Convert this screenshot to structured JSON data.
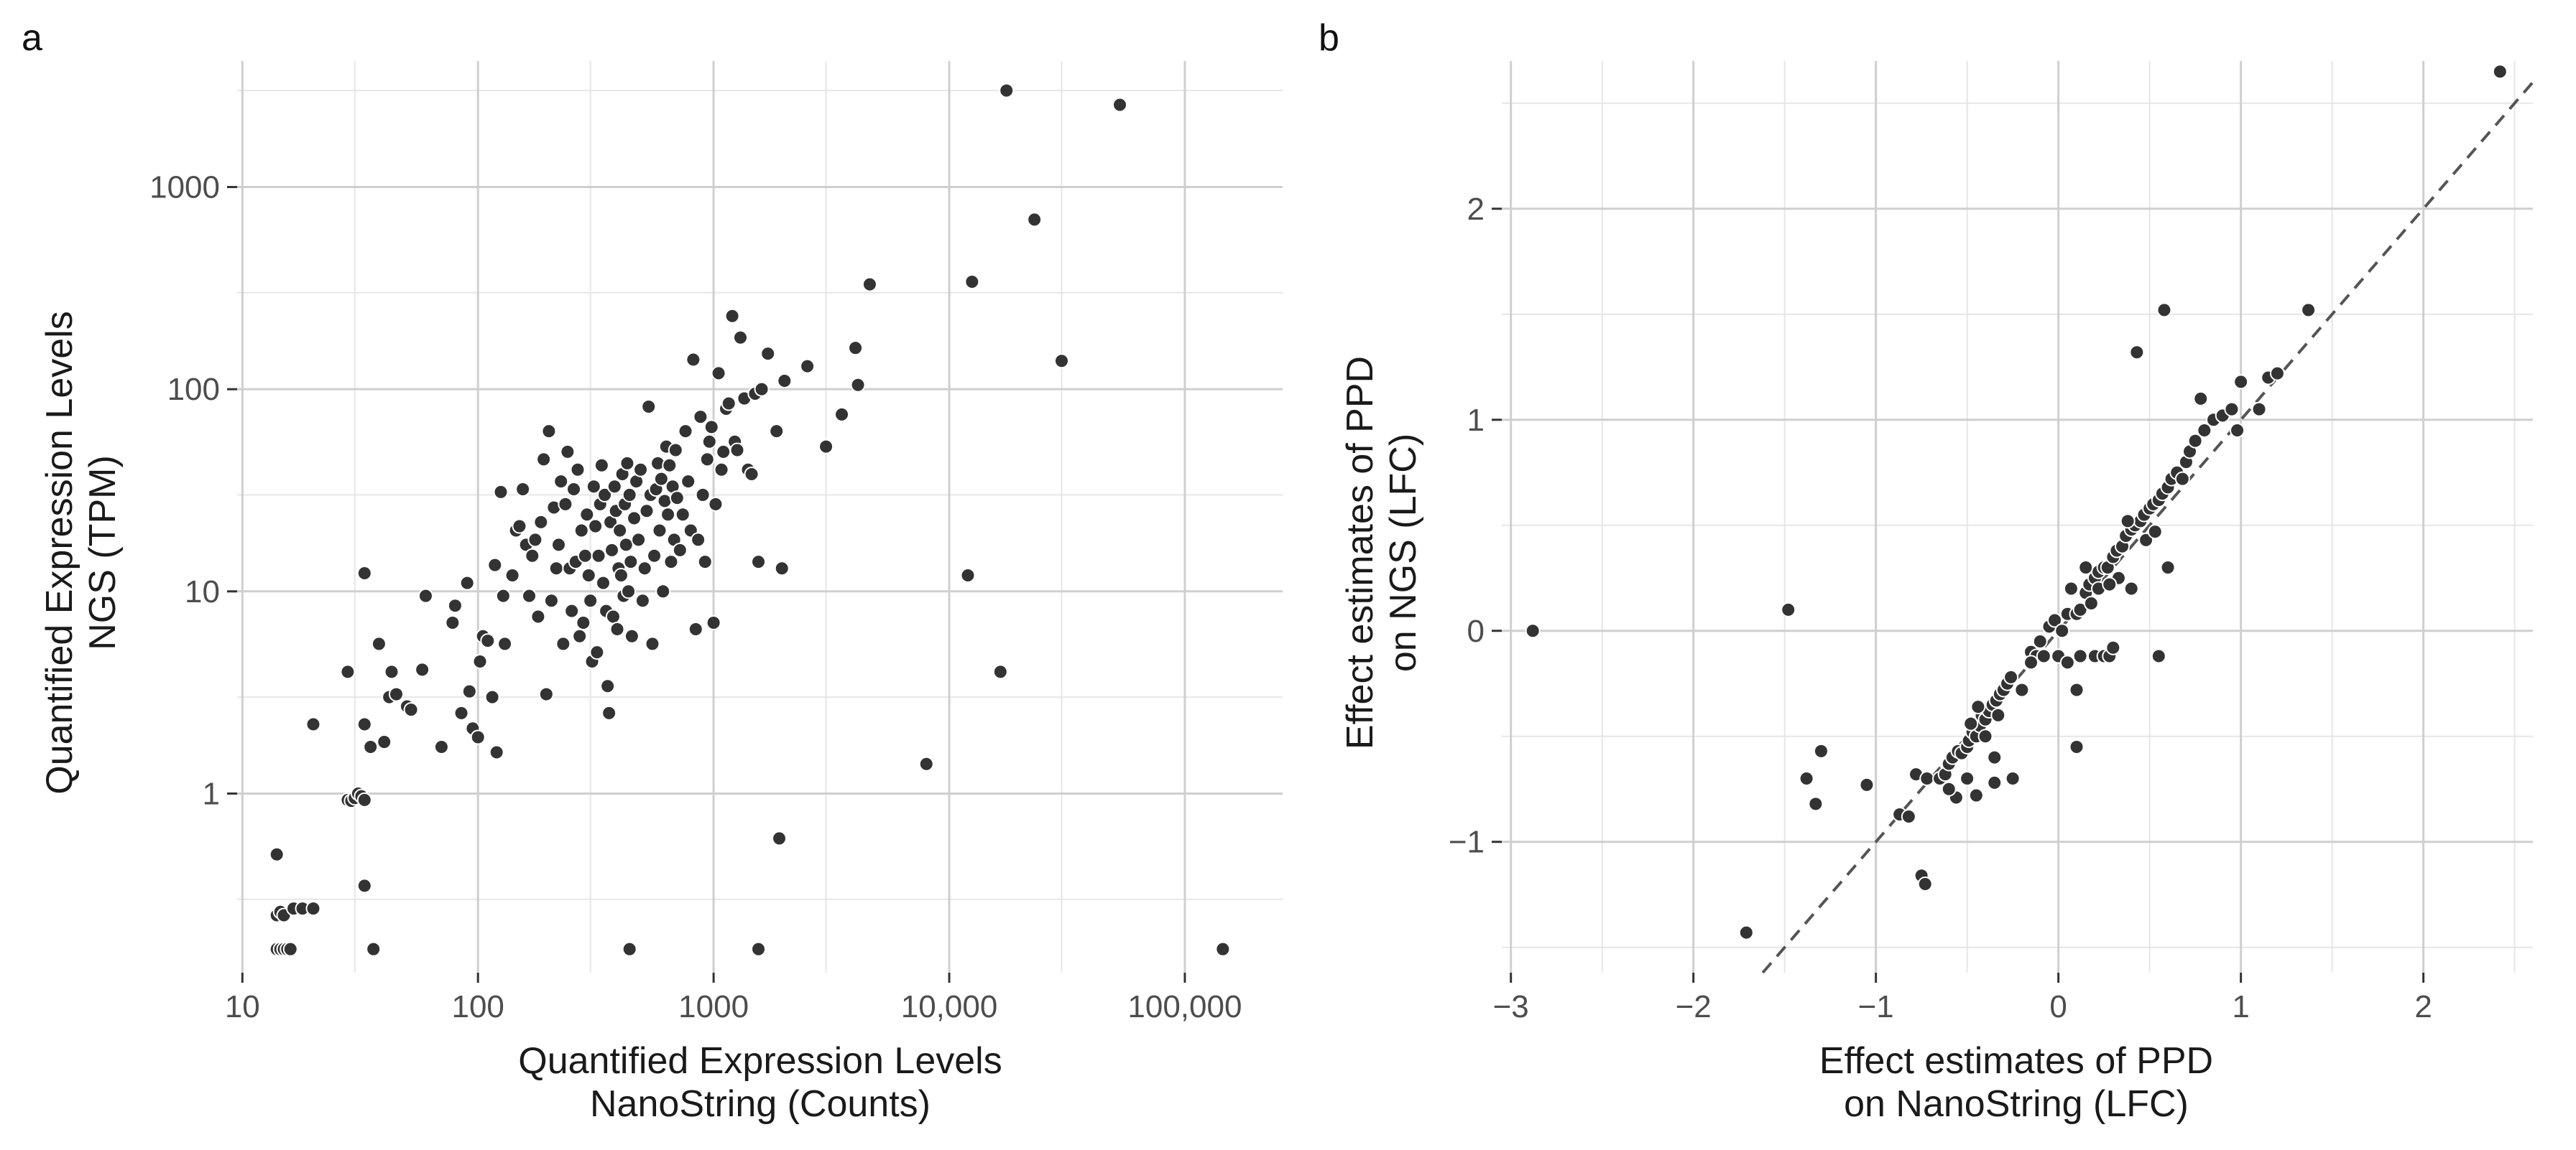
{
  "panels": {
    "a": {
      "letter": "a"
    },
    "b": {
      "letter": "b"
    }
  },
  "colors": {
    "point": "#333333",
    "point_stroke": "#ffffff",
    "grid_major": "#cfcfcf",
    "grid_minor": "#e6e6e6",
    "refline": "#555555",
    "text": "#1a1a1a"
  },
  "chart_data": [
    {
      "panel": "a",
      "type": "scatter",
      "title": "",
      "xlabel_lines": [
        "Quantified Expression Levels",
        "NanoString (Counts)"
      ],
      "ylabel_lines": [
        "Quantified Expression Levels",
        "NGS (TPM)"
      ],
      "xscale": "log10",
      "yscale": "log10",
      "xlim": [
        9.5,
        260000
      ],
      "ylim": [
        0.13,
        4200
      ],
      "xticks": [
        10,
        100,
        1000,
        10000,
        100000
      ],
      "xtick_labels": [
        "10",
        "100",
        "1000",
        "10,000",
        "100,000"
      ],
      "yticks": [
        1,
        10,
        100,
        1000
      ],
      "ytick_labels": [
        "1",
        "10",
        "100",
        "1000"
      ],
      "grid": true,
      "points": [
        [
          14,
          0.17
        ],
        [
          14.5,
          0.17
        ],
        [
          15,
          0.17
        ],
        [
          15.5,
          0.17
        ],
        [
          16,
          0.17
        ],
        [
          36,
          0.17
        ],
        [
          440,
          0.17
        ],
        [
          1550,
          0.17
        ],
        [
          145000,
          0.17
        ],
        [
          14,
          0.25
        ],
        [
          14.5,
          0.26
        ],
        [
          15,
          0.25
        ],
        [
          16.5,
          0.27
        ],
        [
          18,
          0.27
        ],
        [
          20,
          0.27
        ],
        [
          14,
          0.5
        ],
        [
          33,
          0.35
        ],
        [
          28,
          0.93
        ],
        [
          29,
          0.92
        ],
        [
          30,
          0.95
        ],
        [
          31,
          1.0
        ],
        [
          32,
          0.97
        ],
        [
          33,
          0.93
        ],
        [
          20,
          2.2
        ],
        [
          28,
          4.0
        ],
        [
          33,
          2.2
        ],
        [
          35,
          1.7
        ],
        [
          33,
          12.3
        ],
        [
          38,
          5.5
        ],
        [
          40,
          1.8
        ],
        [
          42,
          3.0
        ],
        [
          43,
          4.0
        ],
        [
          45,
          3.1
        ],
        [
          50,
          2.7
        ],
        [
          52,
          2.6
        ],
        [
          58,
          4.1
        ],
        [
          60,
          9.5
        ],
        [
          70,
          1.7
        ],
        [
          78,
          7.0
        ],
        [
          80,
          8.5
        ],
        [
          85,
          2.5
        ],
        [
          90,
          11
        ],
        [
          92,
          3.2
        ],
        [
          95,
          2.1
        ],
        [
          100,
          1.9
        ],
        [
          102,
          4.5
        ],
        [
          105,
          6.0
        ],
        [
          110,
          5.7
        ],
        [
          115,
          3.0
        ],
        [
          118,
          13.5
        ],
        [
          120,
          1.6
        ],
        [
          125,
          31
        ],
        [
          128,
          9.5
        ],
        [
          130,
          5.5
        ],
        [
          140,
          12
        ],
        [
          145,
          20
        ],
        [
          150,
          21
        ],
        [
          155,
          32
        ],
        [
          160,
          17
        ],
        [
          165,
          9.5
        ],
        [
          170,
          15
        ],
        [
          175,
          18
        ],
        [
          180,
          7.5
        ],
        [
          185,
          22
        ],
        [
          190,
          45
        ],
        [
          195,
          3.1
        ],
        [
          200,
          62
        ],
        [
          205,
          9
        ],
        [
          210,
          26
        ],
        [
          215,
          13
        ],
        [
          220,
          17
        ],
        [
          225,
          35
        ],
        [
          230,
          5.5
        ],
        [
          235,
          27
        ],
        [
          240,
          49
        ],
        [
          245,
          13
        ],
        [
          250,
          8
        ],
        [
          255,
          32
        ],
        [
          260,
          14
        ],
        [
          265,
          40
        ],
        [
          270,
          6
        ],
        [
          275,
          20
        ],
        [
          280,
          7
        ],
        [
          285,
          15
        ],
        [
          290,
          24
        ],
        [
          295,
          12
        ],
        [
          300,
          9
        ],
        [
          305,
          4.5
        ],
        [
          310,
          33
        ],
        [
          315,
          21
        ],
        [
          320,
          5
        ],
        [
          325,
          15
        ],
        [
          330,
          27
        ],
        [
          335,
          42
        ],
        [
          340,
          11
        ],
        [
          345,
          30
        ],
        [
          350,
          8
        ],
        [
          355,
          3.4
        ],
        [
          360,
          2.5
        ],
        [
          365,
          22
        ],
        [
          370,
          16
        ],
        [
          375,
          7.5
        ],
        [
          380,
          33
        ],
        [
          385,
          25
        ],
        [
          390,
          6.5
        ],
        [
          395,
          13
        ],
        [
          400,
          20
        ],
        [
          405,
          12
        ],
        [
          410,
          38
        ],
        [
          415,
          9.5
        ],
        [
          420,
          27
        ],
        [
          425,
          17
        ],
        [
          430,
          43
        ],
        [
          435,
          10
        ],
        [
          440,
          30
        ],
        [
          445,
          14
        ],
        [
          450,
          6
        ],
        [
          460,
          23
        ],
        [
          470,
          35
        ],
        [
          480,
          18
        ],
        [
          490,
          40
        ],
        [
          500,
          9
        ],
        [
          510,
          13
        ],
        [
          520,
          25
        ],
        [
          530,
          82
        ],
        [
          540,
          30
        ],
        [
          550,
          5.5
        ],
        [
          560,
          15
        ],
        [
          570,
          32
        ],
        [
          580,
          43
        ],
        [
          590,
          20
        ],
        [
          600,
          36
        ],
        [
          610,
          10
        ],
        [
          620,
          28
        ],
        [
          630,
          52
        ],
        [
          640,
          24
        ],
        [
          650,
          42
        ],
        [
          660,
          14
        ],
        [
          670,
          33
        ],
        [
          680,
          18
        ],
        [
          690,
          50
        ],
        [
          700,
          29
        ],
        [
          720,
          16
        ],
        [
          740,
          24
        ],
        [
          760,
          62
        ],
        [
          780,
          35
        ],
        [
          800,
          20
        ],
        [
          820,
          140
        ],
        [
          840,
          6.5
        ],
        [
          860,
          18
        ],
        [
          880,
          73
        ],
        [
          900,
          30
        ],
        [
          920,
          14
        ],
        [
          940,
          45
        ],
        [
          960,
          55
        ],
        [
          980,
          65
        ],
        [
          1000,
          7
        ],
        [
          1020,
          27
        ],
        [
          1050,
          120
        ],
        [
          1080,
          40
        ],
        [
          1100,
          49
        ],
        [
          1130,
          80
        ],
        [
          1160,
          85
        ],
        [
          1200,
          230
        ],
        [
          1230,
          55
        ],
        [
          1260,
          50
        ],
        [
          1300,
          180
        ],
        [
          1350,
          90
        ],
        [
          1400,
          40
        ],
        [
          1450,
          38
        ],
        [
          1500,
          95
        ],
        [
          1550,
          14
        ],
        [
          1600,
          100
        ],
        [
          1700,
          150
        ],
        [
          1850,
          62
        ],
        [
          1900,
          0.6
        ],
        [
          1950,
          13
        ],
        [
          2000,
          110
        ],
        [
          2500,
          130
        ],
        [
          3000,
          52
        ],
        [
          3500,
          75
        ],
        [
          4000,
          160
        ],
        [
          4100,
          105
        ],
        [
          4600,
          330
        ],
        [
          8000,
          1.4
        ],
        [
          12000,
          12
        ],
        [
          12500,
          340
        ],
        [
          16500,
          4
        ],
        [
          17500,
          3000
        ],
        [
          23000,
          690
        ],
        [
          30000,
          138
        ],
        [
          53000,
          2550
        ]
      ]
    },
    {
      "panel": "b",
      "type": "scatter",
      "title": "",
      "xlabel_lines": [
        "Effect estimates of PPD",
        "on NanoString (LFC)"
      ],
      "ylabel_lines": [
        "Effect estimates of PPD",
        "on NGS (LFC)"
      ],
      "xscale": "linear",
      "yscale": "linear",
      "xlim": [
        -3.05,
        2.6
      ],
      "ylim": [
        -1.62,
        2.7
      ],
      "xticks": [
        -3,
        -2,
        -1,
        0,
        1,
        2
      ],
      "xtick_labels": [
        "−3",
        "−2",
        "−1",
        "0",
        "1",
        "2"
      ],
      "yticks": [
        -1,
        0,
        1,
        2
      ],
      "ytick_labels": [
        "−1",
        "0",
        "1",
        "2"
      ],
      "grid": true,
      "reference_line": {
        "slope": 1,
        "intercept": 0,
        "style": "dashed"
      },
      "points": [
        [
          -2.88,
          0
        ],
        [
          -1.48,
          0.1
        ],
        [
          -1.38,
          -0.7
        ],
        [
          -1.33,
          -0.82
        ],
        [
          -1.3,
          -0.57
        ],
        [
          -1.05,
          -0.73
        ],
        [
          -0.87,
          -0.87
        ],
        [
          -0.82,
          -0.88
        ],
        [
          -0.78,
          -0.68
        ],
        [
          -0.72,
          -0.7
        ],
        [
          -0.75,
          -1.16
        ],
        [
          -0.73,
          -1.2
        ],
        [
          -1.71,
          -1.43
        ],
        [
          -0.65,
          -0.7
        ],
        [
          -0.62,
          -0.68
        ],
        [
          -0.6,
          -0.63
        ],
        [
          -0.58,
          -0.6
        ],
        [
          -0.56,
          -0.79
        ],
        [
          -0.55,
          -0.57
        ],
        [
          -0.53,
          -0.58
        ],
        [
          -0.5,
          -0.55
        ],
        [
          -0.49,
          -0.52
        ],
        [
          -0.47,
          -0.48
        ],
        [
          -0.45,
          -0.5
        ],
        [
          -0.43,
          -0.45
        ],
        [
          -0.42,
          -0.4
        ],
        [
          -0.4,
          -0.42
        ],
        [
          -0.38,
          -0.38
        ],
        [
          -0.36,
          -0.35
        ],
        [
          -0.34,
          -0.33
        ],
        [
          -0.32,
          -0.3
        ],
        [
          -0.3,
          -0.28
        ],
        [
          -0.28,
          -0.25
        ],
        [
          -0.26,
          -0.22
        ],
        [
          -0.45,
          -0.78
        ],
        [
          -0.35,
          -0.6
        ],
        [
          -0.5,
          -0.7
        ],
        [
          -0.25,
          -0.7
        ],
        [
          -0.2,
          -0.28
        ],
        [
          -0.15,
          -0.1
        ],
        [
          -0.12,
          -0.12
        ],
        [
          -0.1,
          -0.05
        ],
        [
          -0.08,
          -0.12
        ],
        [
          -0.05,
          0.02
        ],
        [
          -0.02,
          0.05
        ],
        [
          0.0,
          -0.12
        ],
        [
          0.02,
          0.0
        ],
        [
          0.05,
          0.08
        ],
        [
          0.07,
          0.2
        ],
        [
          0.1,
          0.08
        ],
        [
          0.12,
          0.1
        ],
        [
          0.15,
          0.18
        ],
        [
          0.17,
          0.22
        ],
        [
          0.2,
          0.25
        ],
        [
          0.22,
          0.28
        ],
        [
          0.25,
          0.3
        ],
        [
          0.27,
          0.3
        ],
        [
          0.3,
          0.35
        ],
        [
          0.32,
          0.38
        ],
        [
          0.35,
          0.4
        ],
        [
          0.37,
          0.45
        ],
        [
          0.4,
          0.48
        ],
        [
          0.42,
          0.5
        ],
        [
          0.45,
          0.52
        ],
        [
          0.47,
          0.55
        ],
        [
          0.5,
          0.58
        ],
        [
          0.52,
          0.6
        ],
        [
          0.55,
          0.62
        ],
        [
          0.57,
          0.65
        ],
        [
          0.6,
          0.68
        ],
        [
          0.62,
          0.72
        ],
        [
          0.65,
          0.75
        ],
        [
          0.68,
          0.72
        ],
        [
          0.7,
          0.8
        ],
        [
          0.72,
          0.85
        ],
        [
          0.75,
          0.9
        ],
        [
          0.8,
          0.95
        ],
        [
          0.85,
          1.0
        ],
        [
          0.9,
          1.02
        ],
        [
          0.95,
          1.05
        ],
        [
          0.98,
          0.95
        ],
        [
          1.0,
          1.18
        ],
        [
          1.1,
          1.05
        ],
        [
          1.15,
          1.2
        ],
        [
          1.2,
          1.22
        ],
        [
          1.37,
          1.52
        ],
        [
          0.58,
          1.52
        ],
        [
          0.43,
          1.32
        ],
        [
          0.1,
          -0.55
        ],
        [
          0.1,
          -0.28
        ],
        [
          0.12,
          -0.12
        ],
        [
          0.2,
          -0.12
        ],
        [
          0.25,
          -0.12
        ],
        [
          0.28,
          -0.12
        ],
        [
          0.55,
          -0.12
        ],
        [
          -0.35,
          -0.72
        ],
        [
          0.6,
          0.3
        ],
        [
          0.3,
          -0.08
        ],
        [
          0.15,
          0.3
        ],
        [
          0.4,
          0.2
        ],
        [
          2.42,
          2.65
        ],
        [
          0.78,
          1.1
        ],
        [
          -0.6,
          -0.75
        ],
        [
          0.05,
          -0.15
        ],
        [
          -0.15,
          -0.15
        ],
        [
          0.33,
          0.25
        ],
        [
          0.38,
          0.52
        ],
        [
          0.48,
          0.43
        ],
        [
          0.53,
          0.47
        ],
        [
          0.18,
          0.13
        ],
        [
          0.22,
          0.2
        ],
        [
          0.28,
          0.22
        ],
        [
          -0.4,
          -0.5
        ],
        [
          -0.44,
          -0.36
        ],
        [
          -0.48,
          -0.44
        ],
        [
          -0.33,
          -0.4
        ]
      ]
    }
  ]
}
